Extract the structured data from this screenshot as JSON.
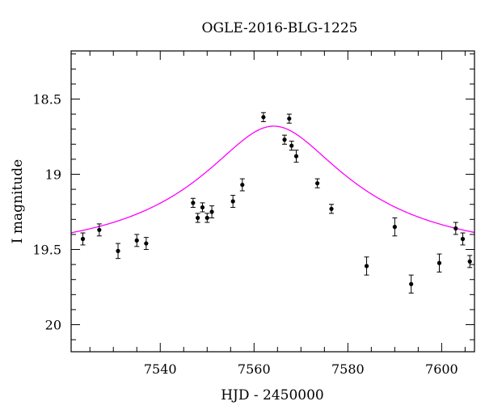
{
  "chart_data": {
    "type": "scatter",
    "title": "OGLE-2016-BLG-1225",
    "xlabel": "HJD - 2450000",
    "ylabel": "I magnitude",
    "xlim": [
      7521,
      7607
    ],
    "ylim": [
      20.18,
      18.18
    ],
    "y_inverted": true,
    "grid": false,
    "legend": "none",
    "x_major_ticks": [
      7540,
      7560,
      7580,
      7600
    ],
    "x_tick_labels": [
      "7540",
      "7560",
      "7580",
      "7600"
    ],
    "y_major_ticks": [
      18.5,
      19,
      19.5,
      20
    ],
    "y_tick_labels": [
      "18.5",
      "19",
      "19.5",
      "20"
    ],
    "model_color": "#ff00ff",
    "point_color": "#000000",
    "series": [
      {
        "kind": "points_with_errorbars",
        "points": [
          {
            "x": 7523.5,
            "y": 19.43,
            "err": 0.04
          },
          {
            "x": 7527.0,
            "y": 19.37,
            "err": 0.04
          },
          {
            "x": 7531.0,
            "y": 19.51,
            "err": 0.05
          },
          {
            "x": 7535.0,
            "y": 19.44,
            "err": 0.04
          },
          {
            "x": 7537.0,
            "y": 19.46,
            "err": 0.04
          },
          {
            "x": 7547.0,
            "y": 19.19,
            "err": 0.03
          },
          {
            "x": 7548.0,
            "y": 19.29,
            "err": 0.03
          },
          {
            "x": 7549.0,
            "y": 19.22,
            "err": 0.03
          },
          {
            "x": 7550.0,
            "y": 19.29,
            "err": 0.03
          },
          {
            "x": 7551.0,
            "y": 19.25,
            "err": 0.04
          },
          {
            "x": 7555.5,
            "y": 19.18,
            "err": 0.04
          },
          {
            "x": 7557.5,
            "y": 19.07,
            "err": 0.04
          },
          {
            "x": 7562.0,
            "y": 18.62,
            "err": 0.03
          },
          {
            "x": 7566.5,
            "y": 18.77,
            "err": 0.03
          },
          {
            "x": 7567.5,
            "y": 18.63,
            "err": 0.03
          },
          {
            "x": 7568.0,
            "y": 18.81,
            "err": 0.03
          },
          {
            "x": 7569.0,
            "y": 18.88,
            "err": 0.04
          },
          {
            "x": 7573.5,
            "y": 19.06,
            "err": 0.03
          },
          {
            "x": 7576.5,
            "y": 19.23,
            "err": 0.03
          },
          {
            "x": 7584.0,
            "y": 19.61,
            "err": 0.06
          },
          {
            "x": 7590.0,
            "y": 19.35,
            "err": 0.06
          },
          {
            "x": 7593.5,
            "y": 19.73,
            "err": 0.06
          },
          {
            "x": 7599.5,
            "y": 19.59,
            "err": 0.06
          },
          {
            "x": 7603.0,
            "y": 19.36,
            "err": 0.04
          },
          {
            "x": 7604.5,
            "y": 19.43,
            "err": 0.04
          },
          {
            "x": 7606.0,
            "y": 19.58,
            "err": 0.04
          }
        ]
      },
      {
        "kind": "model_curve",
        "model": "point-lens",
        "t0": 7564.2,
        "tE": 38.0,
        "u0": 0.33,
        "baseline": 19.52,
        "peak": 18.68
      }
    ]
  }
}
